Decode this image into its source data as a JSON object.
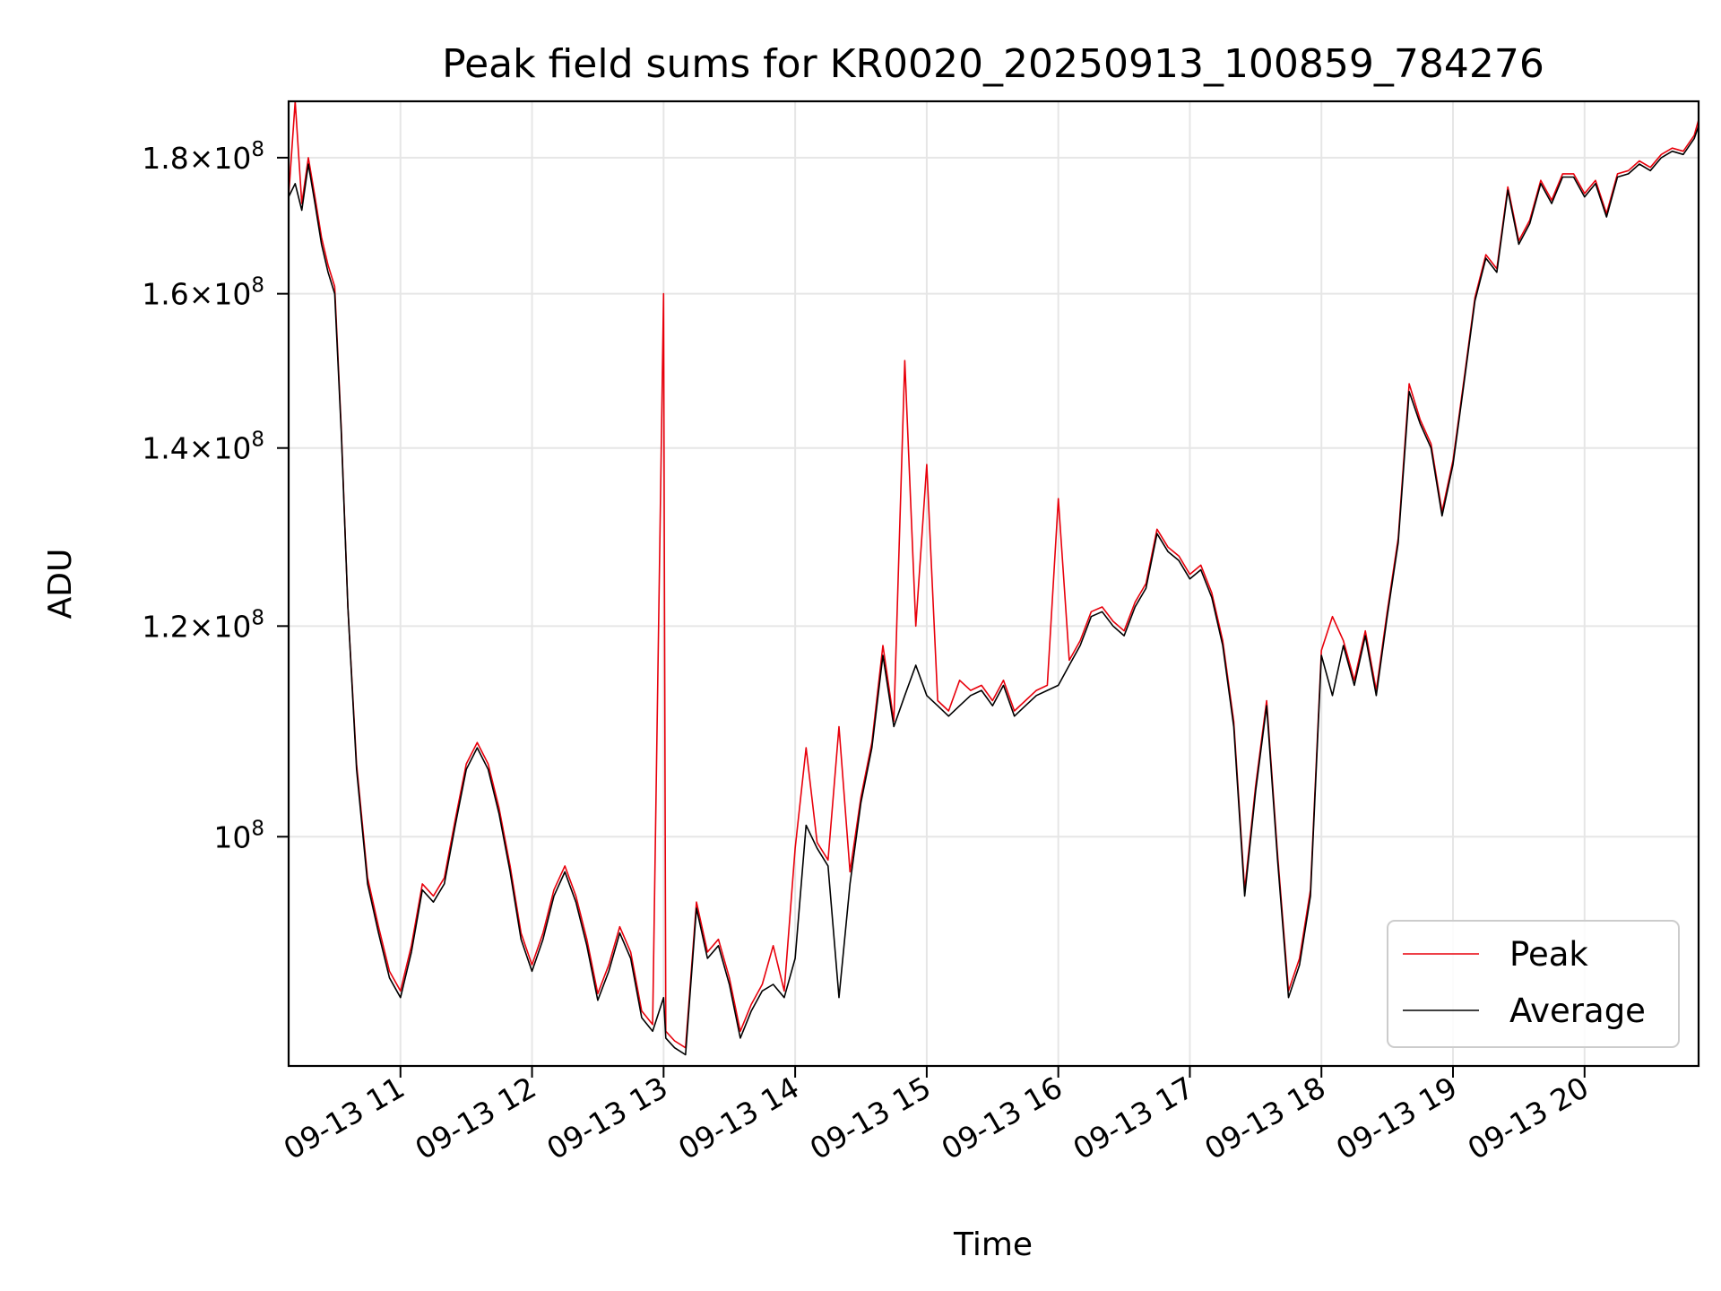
{
  "chart_data": {
    "type": "line",
    "title": "Peak field sums for KR0020_20250913_100859_784276",
    "xlabel": "Time",
    "ylabel": "ADU",
    "x_scale": "time",
    "y_scale": "log",
    "xlim": [
      "09-13 10:09",
      "09-13 20:52"
    ],
    "ylim": [
      82000000,
      189000000
    ],
    "grid": true,
    "legend_position": "lower-right",
    "x_ticks": [
      "09-13 11",
      "09-13 12",
      "09-13 13",
      "09-13 14",
      "09-13 15",
      "09-13 16",
      "09-13 17",
      "09-13 18",
      "09-13 19",
      "09-13 20"
    ],
    "y_ticks": [
      {
        "value": 100000000,
        "mantissa": "",
        "exponent": "8"
      },
      {
        "value": 120000000,
        "mantissa": "1.2",
        "exponent": "8"
      },
      {
        "value": 140000000,
        "mantissa": "1.4",
        "exponent": "8"
      },
      {
        "value": 160000000,
        "mantissa": "1.6",
        "exponent": "8"
      },
      {
        "value": 180000000,
        "mantissa": "1.8",
        "exponent": "8"
      }
    ],
    "series": [
      {
        "name": "Peak",
        "color": "#e8000b"
      },
      {
        "name": "Average",
        "color": "#000000"
      }
    ],
    "x": [
      "10:09",
      "10:12",
      "10:15",
      "10:18",
      "10:21",
      "10:24",
      "10:27",
      "10:30",
      "10:33",
      "10:36",
      "10:40",
      "10:45",
      "10:50",
      "10:55",
      "11:00",
      "11:05",
      "11:10",
      "11:15",
      "11:20",
      "11:25",
      "11:30",
      "11:35",
      "11:40",
      "11:45",
      "11:50",
      "11:55",
      "12:00",
      "12:05",
      "12:10",
      "12:15",
      "12:20",
      "12:25",
      "12:30",
      "12:35",
      "12:40",
      "12:45",
      "12:50",
      "12:55",
      "13:00",
      "13:01",
      "13:05",
      "13:10",
      "13:15",
      "13:20",
      "13:25",
      "13:30",
      "13:35",
      "13:40",
      "13:45",
      "13:50",
      "13:55",
      "14:00",
      "14:05",
      "14:10",
      "14:15",
      "14:20",
      "14:25",
      "14:30",
      "14:35",
      "14:40",
      "14:45",
      "14:50",
      "14:55",
      "15:00",
      "15:05",
      "15:10",
      "15:15",
      "15:20",
      "15:25",
      "15:30",
      "15:35",
      "15:40",
      "15:45",
      "15:50",
      "15:55",
      "16:00",
      "16:05",
      "16:10",
      "16:15",
      "16:20",
      "16:25",
      "16:30",
      "16:35",
      "16:40",
      "16:45",
      "16:50",
      "16:55",
      "17:00",
      "17:05",
      "17:10",
      "17:15",
      "17:20",
      "17:25",
      "17:30",
      "17:35",
      "17:40",
      "17:45",
      "17:50",
      "17:55",
      "18:00",
      "18:05",
      "18:10",
      "18:15",
      "18:20",
      "18:25",
      "18:30",
      "18:35",
      "18:40",
      "18:45",
      "18:50",
      "18:55",
      "19:00",
      "19:05",
      "19:10",
      "19:15",
      "19:20",
      "19:25",
      "19:30",
      "19:35",
      "19:40",
      "19:45",
      "19:50",
      "19:55",
      "20:00",
      "20:05",
      "20:10",
      "20:15",
      "20:20",
      "20:25",
      "20:30",
      "20:35",
      "20:40",
      "20:45",
      "20:50",
      "20:52"
    ],
    "average": [
      174000000,
      176000000,
      172000000,
      179000000,
      173000000,
      167000000,
      163000000,
      160000000,
      142000000,
      122000000,
      106000000,
      96000000,
      92000000,
      88500000,
      87000000,
      90500000,
      95500000,
      94500000,
      96000000,
      101000000,
      106000000,
      108000000,
      106000000,
      102000000,
      97000000,
      91500000,
      89000000,
      91500000,
      95000000,
      97000000,
      94500000,
      91000000,
      86800000,
      89000000,
      92000000,
      90000000,
      85500000,
      84500000,
      87000000,
      84000000,
      83300000,
      82800000,
      94000000,
      90000000,
      91000000,
      88000000,
      84000000,
      86000000,
      87500000,
      88000000,
      87000000,
      90000000,
      101000000,
      99000000,
      97500000,
      87000000,
      96000000,
      103000000,
      108000000,
      117000000,
      110000000,
      113000000,
      116000000,
      113000000,
      112000000,
      111000000,
      112000000,
      113000000,
      113500000,
      112000000,
      114000000,
      111000000,
      112000000,
      113000000,
      113500000,
      114000000,
      116000000,
      118000000,
      121000000,
      121500000,
      120000000,
      119000000,
      122000000,
      124000000,
      130000000,
      128000000,
      127000000,
      125000000,
      126000000,
      123000000,
      118000000,
      110000000,
      95000000,
      104000000,
      112000000,
      98000000,
      87000000,
      89500000,
      95000000,
      117000000,
      113000000,
      118000000,
      114000000,
      119000000,
      113000000,
      121000000,
      129000000,
      147000000,
      143000000,
      140000000,
      132000000,
      138000000,
      148000000,
      159000000,
      165000000,
      163000000,
      175000000,
      167000000,
      170000000,
      176000000,
      173000000,
      177000000,
      177000000,
      174000000,
      176000000,
      171000000,
      177000000,
      177500000,
      179000000,
      178000000,
      180000000,
      181000000,
      180500000,
      183000000,
      185000000,
      177500000
    ],
    "peak": [
      174000000,
      189000000,
      173000000,
      180000000,
      174000000,
      168000000,
      164000000,
      161000000,
      142500000,
      122000000,
      106500000,
      96500000,
      92500000,
      89000000,
      87500000,
      91000000,
      96000000,
      95000000,
      96500000,
      101500000,
      106500000,
      108500000,
      106500000,
      102500000,
      97500000,
      92000000,
      89500000,
      92000000,
      95500000,
      97500000,
      95000000,
      91500000,
      87300000,
      89500000,
      92500000,
      90500000,
      86000000,
      85000000,
      160000000,
      84500000,
      83800000,
      83300000,
      94500000,
      90500000,
      91500000,
      88500000,
      84500000,
      86500000,
      88000000,
      91000000,
      87500000,
      99000000,
      108000000,
      99500000,
      98000000,
      110000000,
      97000000,
      103500000,
      108500000,
      118000000,
      110500000,
      151000000,
      120000000,
      138000000,
      112500000,
      111500000,
      114500000,
      113500000,
      114000000,
      112500000,
      114500000,
      111500000,
      112500000,
      113500000,
      114000000,
      134000000,
      116500000,
      118500000,
      121500000,
      122000000,
      120500000,
      119500000,
      122500000,
      124500000,
      130500000,
      128500000,
      127500000,
      125500000,
      126500000,
      123500000,
      118500000,
      110500000,
      95500000,
      104500000,
      112500000,
      98500000,
      87500000,
      90000000,
      95500000,
      117500000,
      121000000,
      118500000,
      114500000,
      119500000,
      113500000,
      121500000,
      129500000,
      148000000,
      143500000,
      140500000,
      132500000,
      138500000,
      148500000,
      159500000,
      165500000,
      163500000,
      175500000,
      167500000,
      170500000,
      176500000,
      173500000,
      177500000,
      177500000,
      174500000,
      176500000,
      171500000,
      177500000,
      178000000,
      179500000,
      178500000,
      180500000,
      181500000,
      181000000,
      183500000,
      186000000,
      178000000
    ]
  }
}
